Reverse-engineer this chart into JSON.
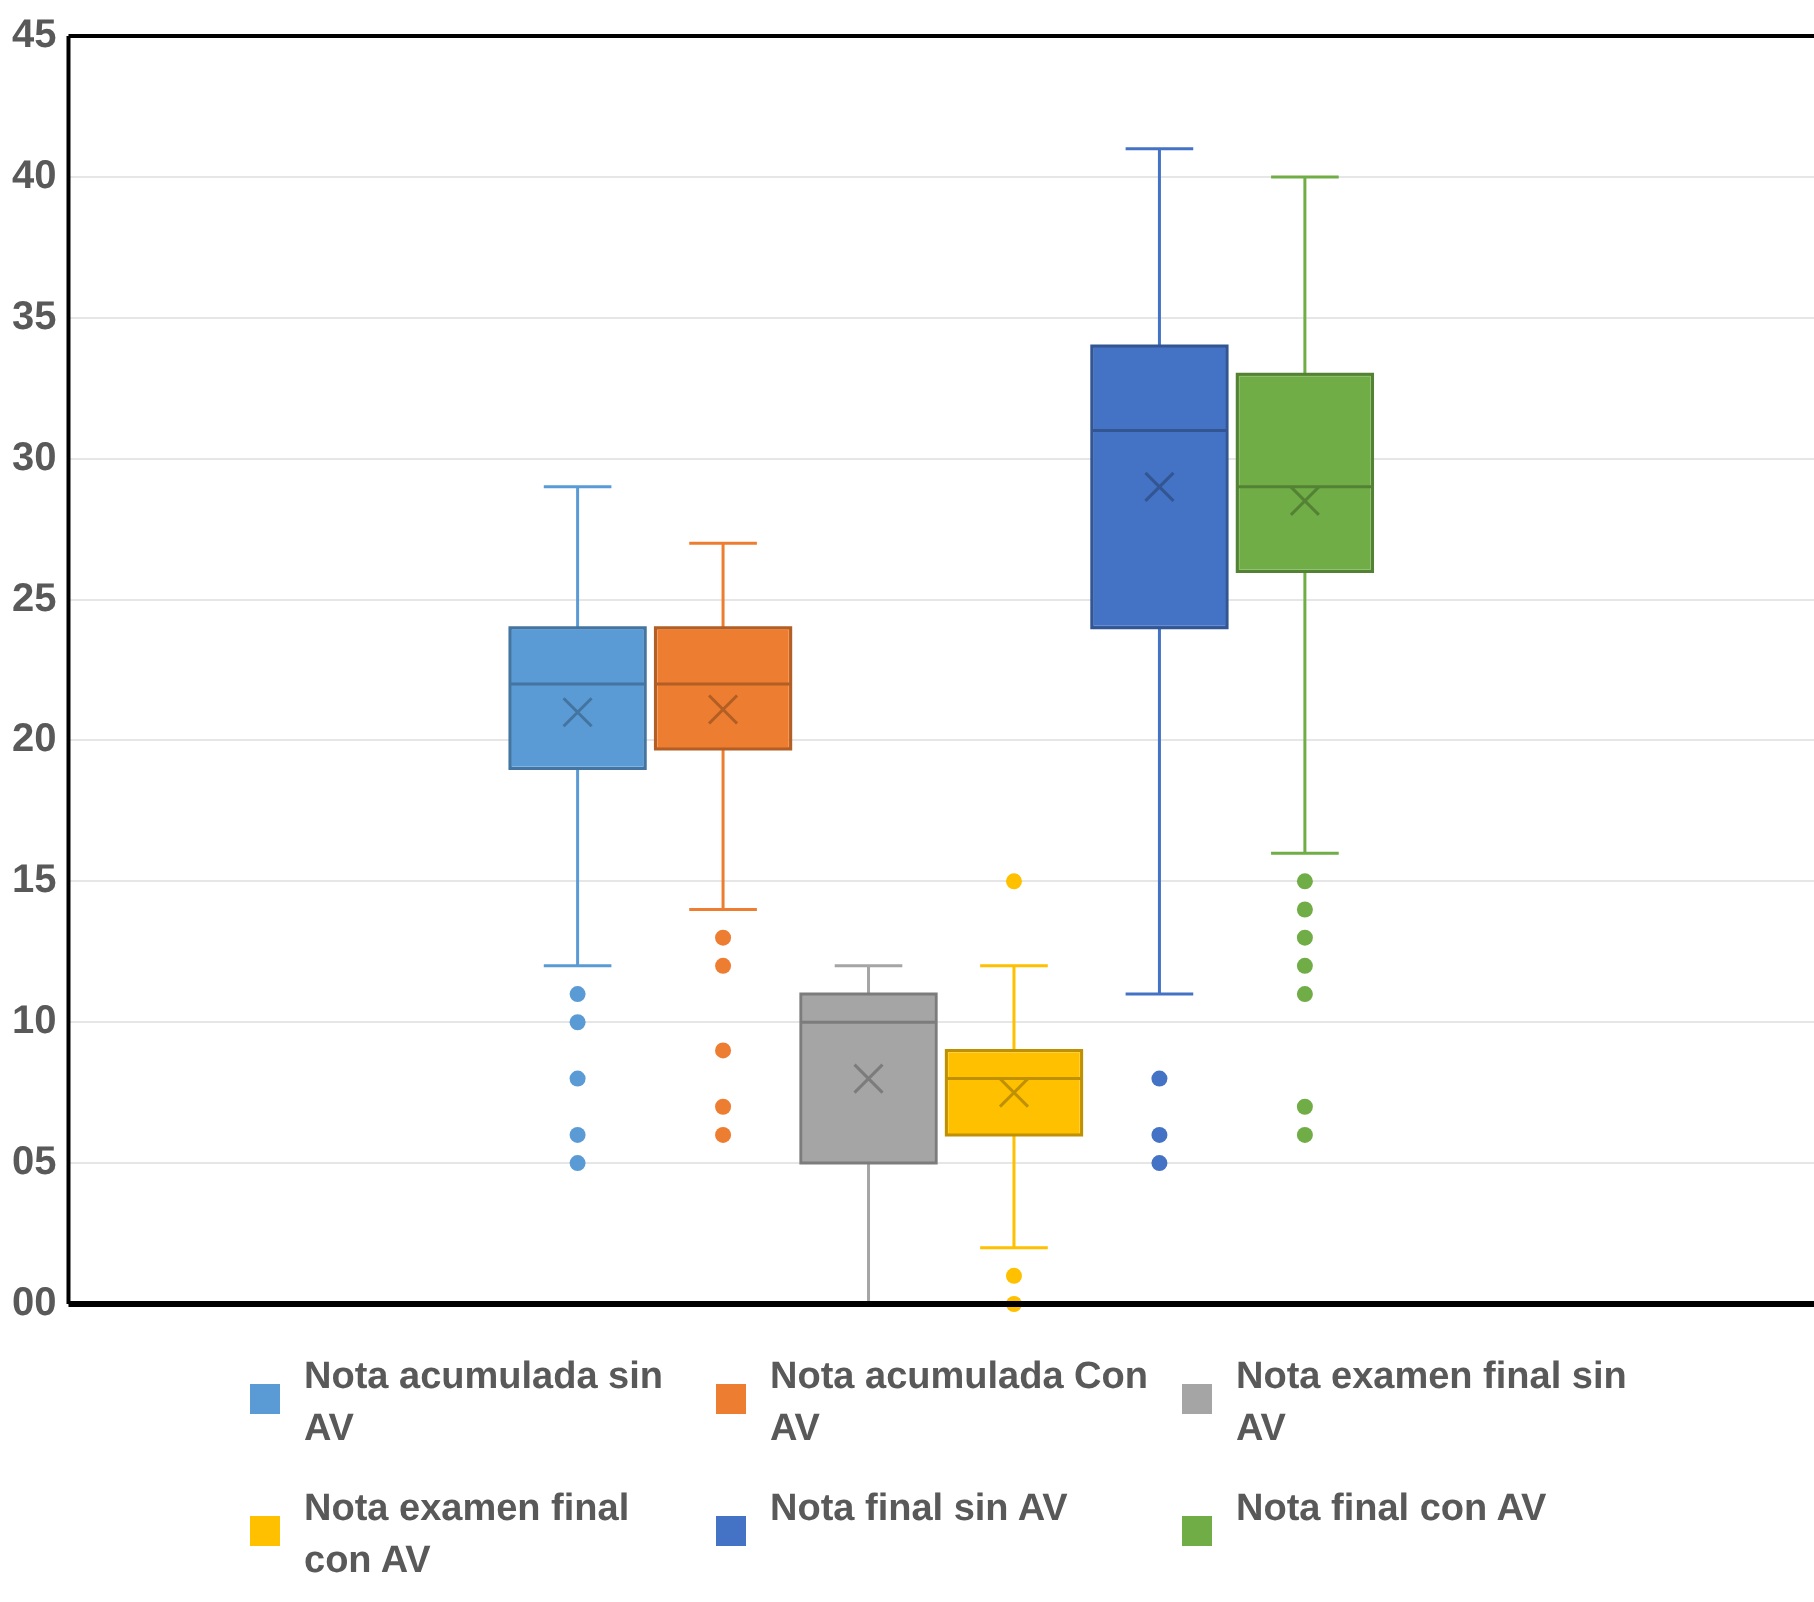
{
  "chart_data": {
    "type": "box",
    "categories": [
      null
    ],
    "series": [
      {
        "name": "Nota acumulada sin AV",
        "color": "#5b9bd5",
        "boxes": [
          {
            "low": 12,
            "q1": 19,
            "median": 22,
            "q3": 24,
            "high": 29,
            "mean": 21,
            "outliers": [
              5,
              6,
              8,
              10,
              11
            ]
          }
        ]
      },
      {
        "name": "Nota acumulada Con AV",
        "color": "#ed7d31",
        "boxes": [
          {
            "low": 14,
            "q1": 19.7,
            "median": 22,
            "q3": 24,
            "high": 27,
            "mean": 21.1,
            "outliers": [
              6,
              7,
              9,
              12,
              13
            ]
          }
        ]
      },
      {
        "name": "Nota examen final sin AV",
        "color": "#a5a5a5",
        "boxes": [
          {
            "low": 0,
            "q1": 5,
            "median": 10,
            "q3": 11,
            "high": 12,
            "mean": 8
          }
        ]
      },
      {
        "name": "Nota examen final con AV",
        "color": "#ffc000",
        "boxes": [
          {
            "low": 2,
            "q1": 6,
            "median": 8,
            "q3": 9,
            "high": 12,
            "mean": 7.5,
            "outliers": [
              0,
              1,
              15
            ]
          }
        ]
      },
      {
        "name": "Nota final sin AV",
        "color": "#4472c4",
        "boxes": [
          {
            "low": 11,
            "q1": 24,
            "median": 31,
            "q3": 34,
            "high": 41,
            "mean": 29,
            "outliers": [
              5,
              6,
              8
            ]
          }
        ]
      },
      {
        "name": "Nota final con AV",
        "color": "#70ad47",
        "boxes": [
          {
            "low": 16,
            "q1": 26,
            "median": 29,
            "q3": 33,
            "high": 40,
            "mean": 28.5,
            "outliers": [
              6,
              7,
              11,
              12,
              13,
              14,
              15
            ]
          }
        ]
      }
    ],
    "ylim": [
      0,
      45
    ],
    "yticks": [
      {
        "value": 0,
        "label": "00"
      },
      {
        "value": 5,
        "label": "05"
      },
      10,
      15,
      20,
      25,
      30,
      35,
      40,
      45
    ],
    "grid": "y",
    "legend": "bottom",
    "marker": "circle"
  }
}
